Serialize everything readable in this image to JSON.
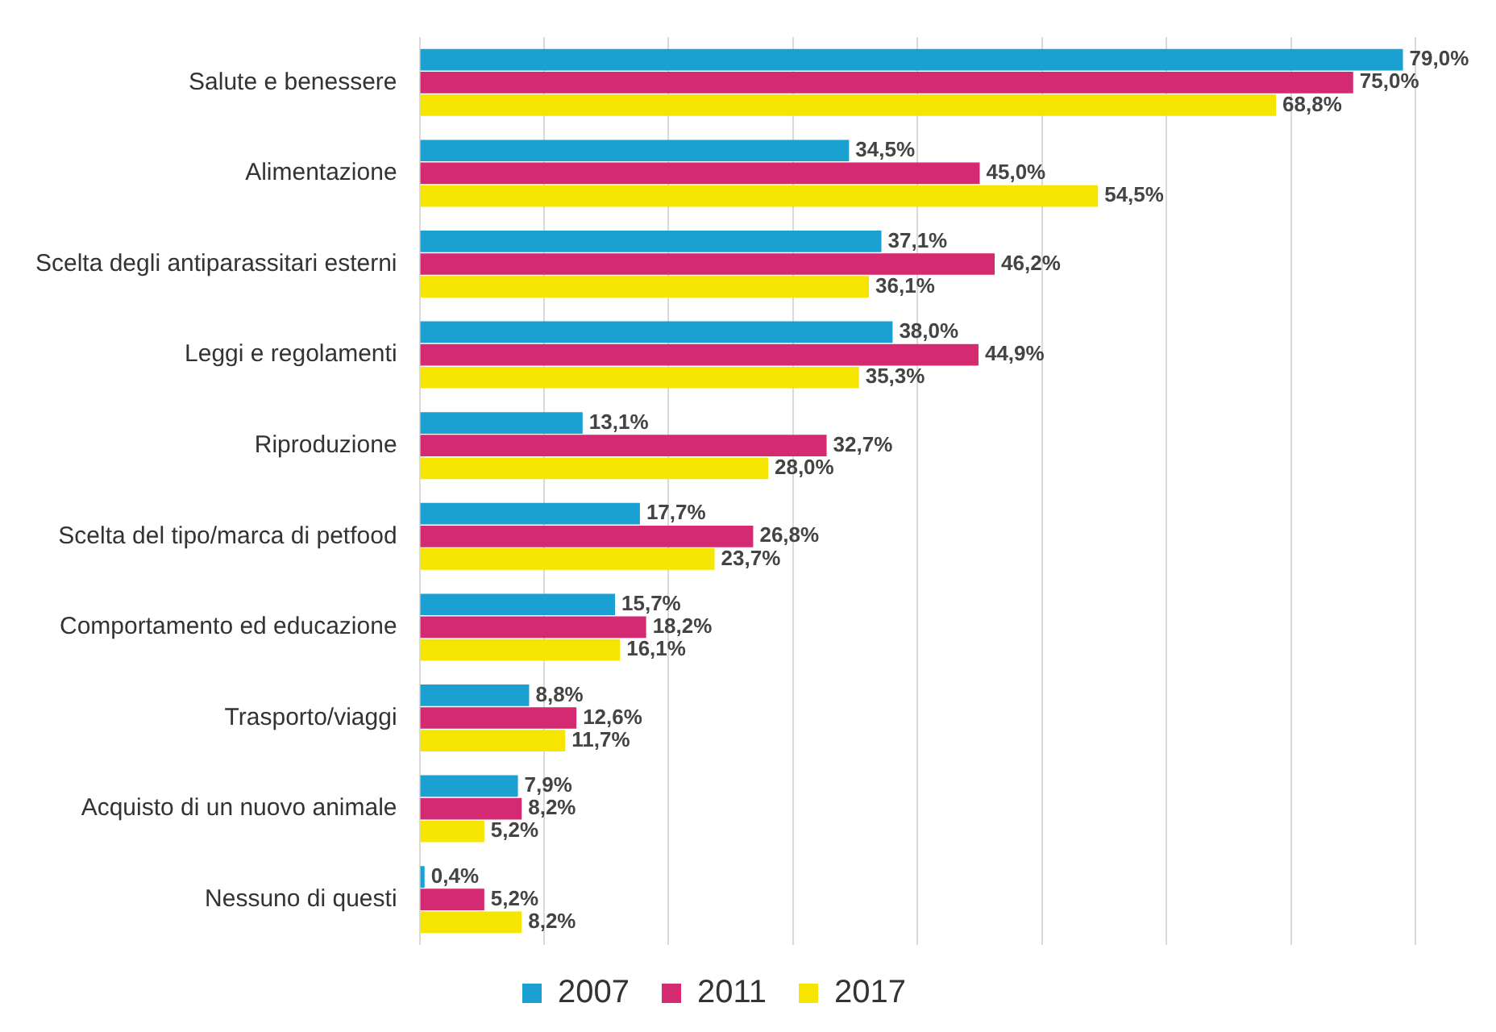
{
  "chart_data": {
    "type": "bar",
    "orientation": "horizontal",
    "categories": [
      "Salute e benessere",
      "Alimentazione",
      "Scelta degli antiparassitari esterni",
      "Leggi e regolamenti",
      "Riproduzione",
      "Scelta del tipo/marca di petfood",
      "Comportamento ed educazione",
      "Trasporto/viaggi",
      "Acquisto di un nuovo animale",
      "Nessuno di questi"
    ],
    "series": [
      {
        "name": "2007",
        "color": "#1ba0d2",
        "values": [
          79.0,
          34.5,
          37.1,
          38.0,
          13.1,
          17.7,
          15.7,
          8.8,
          7.9,
          0.4
        ],
        "value_labels": [
          "79,0%",
          "34,5%",
          "37,1%",
          "38,0%",
          "13,1%",
          "17,7%",
          "15,7%",
          "8,8%",
          "7,9%",
          "0,4%"
        ]
      },
      {
        "name": "2011",
        "color": "#d42a72",
        "values": [
          75.0,
          45.0,
          46.2,
          44.9,
          32.7,
          26.8,
          18.2,
          12.6,
          8.2,
          5.2
        ],
        "value_labels": [
          "75,0%",
          "45,0%",
          "46,2%",
          "44,9%",
          "32,7%",
          "26,8%",
          "18,2%",
          "12,6%",
          "8,2%",
          "5,2%"
        ]
      },
      {
        "name": "2017",
        "color": "#f6e500",
        "values": [
          68.8,
          54.5,
          36.1,
          35.3,
          28.0,
          23.7,
          16.1,
          11.7,
          5.2,
          8.2
        ],
        "value_labels": [
          "68,8%",
          "54,5%",
          "36,1%",
          "35,3%",
          "28,0%",
          "23,7%",
          "16,1%",
          "11,7%",
          "5,2%",
          "8,2%"
        ]
      }
    ],
    "xlim": [
      0,
      80
    ],
    "xticks": [
      {
        "value": 0,
        "label": null
      },
      {
        "value": 10,
        "label": null
      },
      {
        "value": 20,
        "label": null
      },
      {
        "value": 30,
        "label": null
      },
      {
        "value": 40,
        "label": null
      },
      {
        "value": 50,
        "label": null
      },
      {
        "value": 60,
        "label": null
      },
      {
        "value": 70,
        "label": null
      },
      {
        "value": 80,
        "label": null
      }
    ],
    "tick_labels": "y",
    "grid": "x",
    "legend": "bottom"
  }
}
